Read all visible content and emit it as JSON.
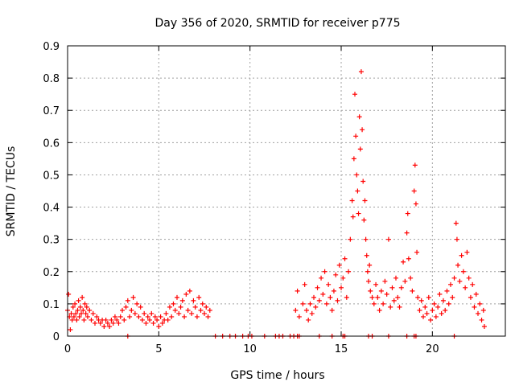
{
  "chart_data": {
    "type": "scatter",
    "title": "Day 356 of 2020, SRMTID for receiver p775",
    "xlabel": "GPS time / hours",
    "ylabel": "SRMTID / TECUs",
    "xlim": [
      0,
      24
    ],
    "ylim": [
      0,
      0.9
    ],
    "x_ticks": [
      0,
      5,
      10,
      15,
      20
    ],
    "x_tick_labels": [
      "0",
      "5",
      "10",
      "15",
      "20"
    ],
    "y_ticks": [
      0,
      0.1,
      0.2,
      0.3,
      0.4,
      0.5,
      0.6,
      0.7,
      0.8,
      0.9
    ],
    "y_tick_labels": [
      "0",
      "0.1",
      "0.2",
      "0.3",
      "0.4",
      "0.5",
      "0.6",
      "0.7",
      "0.8",
      "0.9"
    ],
    "grid": true,
    "marker": "+",
    "marker_color": "#ff0000",
    "series": [
      {
        "name": "SRMTID",
        "points": [
          [
            0.0,
            0.08
          ],
          [
            0.05,
            0.13
          ],
          [
            0.1,
            0.06
          ],
          [
            0.15,
            0.02
          ],
          [
            0.2,
            0.07
          ],
          [
            0.25,
            0.05
          ],
          [
            0.3,
            0.09
          ],
          [
            0.35,
            0.06
          ],
          [
            0.4,
            0.1
          ],
          [
            0.45,
            0.07
          ],
          [
            0.5,
            0.05
          ],
          [
            0.55,
            0.08
          ],
          [
            0.6,
            0.11
          ],
          [
            0.65,
            0.06
          ],
          [
            0.7,
            0.09
          ],
          [
            0.75,
            0.07
          ],
          [
            0.8,
            0.12
          ],
          [
            0.85,
            0.08
          ],
          [
            0.9,
            0.05
          ],
          [
            0.95,
            0.1
          ],
          [
            1.0,
            0.07
          ],
          [
            1.05,
            0.09
          ],
          [
            1.1,
            0.06
          ],
          [
            1.2,
            0.08
          ],
          [
            1.3,
            0.05
          ],
          [
            1.4,
            0.07
          ],
          [
            1.5,
            0.04
          ],
          [
            1.6,
            0.06
          ],
          [
            1.7,
            0.05
          ],
          [
            1.8,
            0.04
          ],
          [
            1.9,
            0.05
          ],
          [
            2.0,
            0.03
          ],
          [
            2.1,
            0.05
          ],
          [
            2.2,
            0.04
          ],
          [
            2.3,
            0.03
          ],
          [
            2.4,
            0.05
          ],
          [
            2.5,
            0.04
          ],
          [
            2.6,
            0.06
          ],
          [
            2.7,
            0.05
          ],
          [
            2.8,
            0.04
          ],
          [
            2.9,
            0.06
          ],
          [
            3.0,
            0.08
          ],
          [
            3.1,
            0.05
          ],
          [
            3.2,
            0.09
          ],
          [
            3.3,
            0.11
          ],
          [
            3.4,
            0.06
          ],
          [
            3.5,
            0.08
          ],
          [
            3.6,
            0.12
          ],
          [
            3.7,
            0.07
          ],
          [
            3.8,
            0.1
          ],
          [
            3.9,
            0.06
          ],
          [
            4.0,
            0.09
          ],
          [
            4.1,
            0.05
          ],
          [
            4.2,
            0.07
          ],
          [
            4.3,
            0.04
          ],
          [
            4.4,
            0.06
          ],
          [
            4.5,
            0.05
          ],
          [
            4.6,
            0.07
          ],
          [
            4.7,
            0.04
          ],
          [
            4.8,
            0.06
          ],
          [
            4.9,
            0.05
          ],
          [
            5.0,
            0.03
          ],
          [
            5.1,
            0.06
          ],
          [
            5.2,
            0.04
          ],
          [
            5.3,
            0.05
          ],
          [
            5.4,
            0.07
          ],
          [
            5.5,
            0.05
          ],
          [
            5.6,
            0.09
          ],
          [
            5.7,
            0.06
          ],
          [
            5.8,
            0.1
          ],
          [
            5.9,
            0.08
          ],
          [
            6.0,
            0.12
          ],
          [
            6.1,
            0.07
          ],
          [
            6.2,
            0.09
          ],
          [
            6.3,
            0.11
          ],
          [
            6.4,
            0.06
          ],
          [
            6.5,
            0.13
          ],
          [
            6.6,
            0.08
          ],
          [
            6.7,
            0.14
          ],
          [
            6.8,
            0.07
          ],
          [
            6.9,
            0.11
          ],
          [
            7.0,
            0.09
          ],
          [
            7.1,
            0.06
          ],
          [
            7.2,
            0.12
          ],
          [
            7.3,
            0.08
          ],
          [
            7.4,
            0.1
          ],
          [
            7.5,
            0.07
          ],
          [
            7.6,
            0.09
          ],
          [
            7.7,
            0.06
          ],
          [
            7.8,
            0.08
          ],
          [
            12.5,
            0.08
          ],
          [
            12.6,
            0.14
          ],
          [
            12.7,
            0.06
          ],
          [
            12.9,
            0.1
          ],
          [
            13.0,
            0.16
          ],
          [
            13.1,
            0.08
          ],
          [
            13.2,
            0.05
          ],
          [
            13.3,
            0.1
          ],
          [
            13.4,
            0.07
          ],
          [
            13.5,
            0.12
          ],
          [
            13.6,
            0.09
          ],
          [
            13.7,
            0.15
          ],
          [
            13.8,
            0.11
          ],
          [
            13.9,
            0.18
          ],
          [
            14.0,
            0.13
          ],
          [
            14.1,
            0.2
          ],
          [
            14.2,
            0.1
          ],
          [
            14.3,
            0.16
          ],
          [
            14.4,
            0.12
          ],
          [
            14.5,
            0.08
          ],
          [
            14.6,
            0.14
          ],
          [
            14.7,
            0.19
          ],
          [
            14.8,
            0.11
          ],
          [
            14.9,
            0.22
          ],
          [
            15.0,
            0.15
          ],
          [
            15.1,
            0.18
          ],
          [
            15.2,
            0.24
          ],
          [
            15.3,
            0.12
          ],
          [
            15.4,
            0.2
          ],
          [
            15.5,
            0.3
          ],
          [
            15.6,
            0.42
          ],
          [
            15.65,
            0.37
          ],
          [
            15.7,
            0.55
          ],
          [
            15.75,
            0.75
          ],
          [
            15.8,
            0.62
          ],
          [
            15.85,
            0.5
          ],
          [
            15.9,
            0.45
          ],
          [
            15.95,
            0.38
          ],
          [
            16.0,
            0.68
          ],
          [
            16.05,
            0.58
          ],
          [
            16.1,
            0.82
          ],
          [
            16.15,
            0.64
          ],
          [
            16.2,
            0.48
          ],
          [
            16.25,
            0.36
          ],
          [
            16.3,
            0.42
          ],
          [
            16.35,
            0.3
          ],
          [
            16.4,
            0.25
          ],
          [
            16.45,
            0.2
          ],
          [
            16.5,
            0.17
          ],
          [
            16.55,
            0.22
          ],
          [
            16.6,
            0.14
          ],
          [
            16.7,
            0.12
          ],
          [
            16.8,
            0.1
          ],
          [
            16.9,
            0.16
          ],
          [
            17.0,
            0.12
          ],
          [
            17.1,
            0.08
          ],
          [
            17.2,
            0.14
          ],
          [
            17.3,
            0.1
          ],
          [
            17.4,
            0.17
          ],
          [
            17.5,
            0.13
          ],
          [
            17.6,
            0.3
          ],
          [
            17.7,
            0.09
          ],
          [
            17.8,
            0.15
          ],
          [
            17.9,
            0.11
          ],
          [
            18.0,
            0.18
          ],
          [
            18.1,
            0.12
          ],
          [
            18.2,
            0.09
          ],
          [
            18.3,
            0.15
          ],
          [
            18.4,
            0.23
          ],
          [
            18.5,
            0.17
          ],
          [
            18.6,
            0.32
          ],
          [
            18.65,
            0.38
          ],
          [
            18.7,
            0.24
          ],
          [
            18.8,
            0.18
          ],
          [
            18.9,
            0.14
          ],
          [
            19.0,
            0.45
          ],
          [
            19.05,
            0.53
          ],
          [
            19.1,
            0.41
          ],
          [
            19.15,
            0.26
          ],
          [
            19.2,
            0.12
          ],
          [
            19.3,
            0.08
          ],
          [
            19.4,
            0.11
          ],
          [
            19.5,
            0.06
          ],
          [
            19.6,
            0.09
          ],
          [
            19.7,
            0.07
          ],
          [
            19.8,
            0.12
          ],
          [
            19.9,
            0.05
          ],
          [
            20.0,
            0.08
          ],
          [
            20.1,
            0.1
          ],
          [
            20.2,
            0.06
          ],
          [
            20.3,
            0.09
          ],
          [
            20.4,
            0.13
          ],
          [
            20.5,
            0.07
          ],
          [
            20.6,
            0.11
          ],
          [
            20.7,
            0.08
          ],
          [
            20.8,
            0.14
          ],
          [
            20.9,
            0.1
          ],
          [
            21.0,
            0.16
          ],
          [
            21.1,
            0.12
          ],
          [
            21.2,
            0.18
          ],
          [
            21.3,
            0.35
          ],
          [
            21.35,
            0.3
          ],
          [
            21.4,
            0.22
          ],
          [
            21.5,
            0.17
          ],
          [
            21.6,
            0.25
          ],
          [
            21.7,
            0.2
          ],
          [
            21.8,
            0.15
          ],
          [
            21.9,
            0.26
          ],
          [
            22.0,
            0.18
          ],
          [
            22.1,
            0.12
          ],
          [
            22.2,
            0.16
          ],
          [
            22.3,
            0.09
          ],
          [
            22.4,
            0.13
          ],
          [
            22.5,
            0.07
          ],
          [
            22.6,
            0.1
          ],
          [
            22.7,
            0.05
          ],
          [
            22.8,
            0.08
          ],
          [
            22.85,
            0.03
          ]
        ]
      }
    ],
    "zero_points_x": [
      3.3,
      8.1,
      8.5,
      8.9,
      9.2,
      9.6,
      9.9,
      10.1,
      10.8,
      11.4,
      11.6,
      11.8,
      12.2,
      12.4,
      12.6,
      12.7,
      13.8,
      14.5,
      15.1,
      15.2,
      16.5,
      16.7,
      17.6,
      18.6,
      19.0,
      19.1,
      21.2
    ]
  }
}
